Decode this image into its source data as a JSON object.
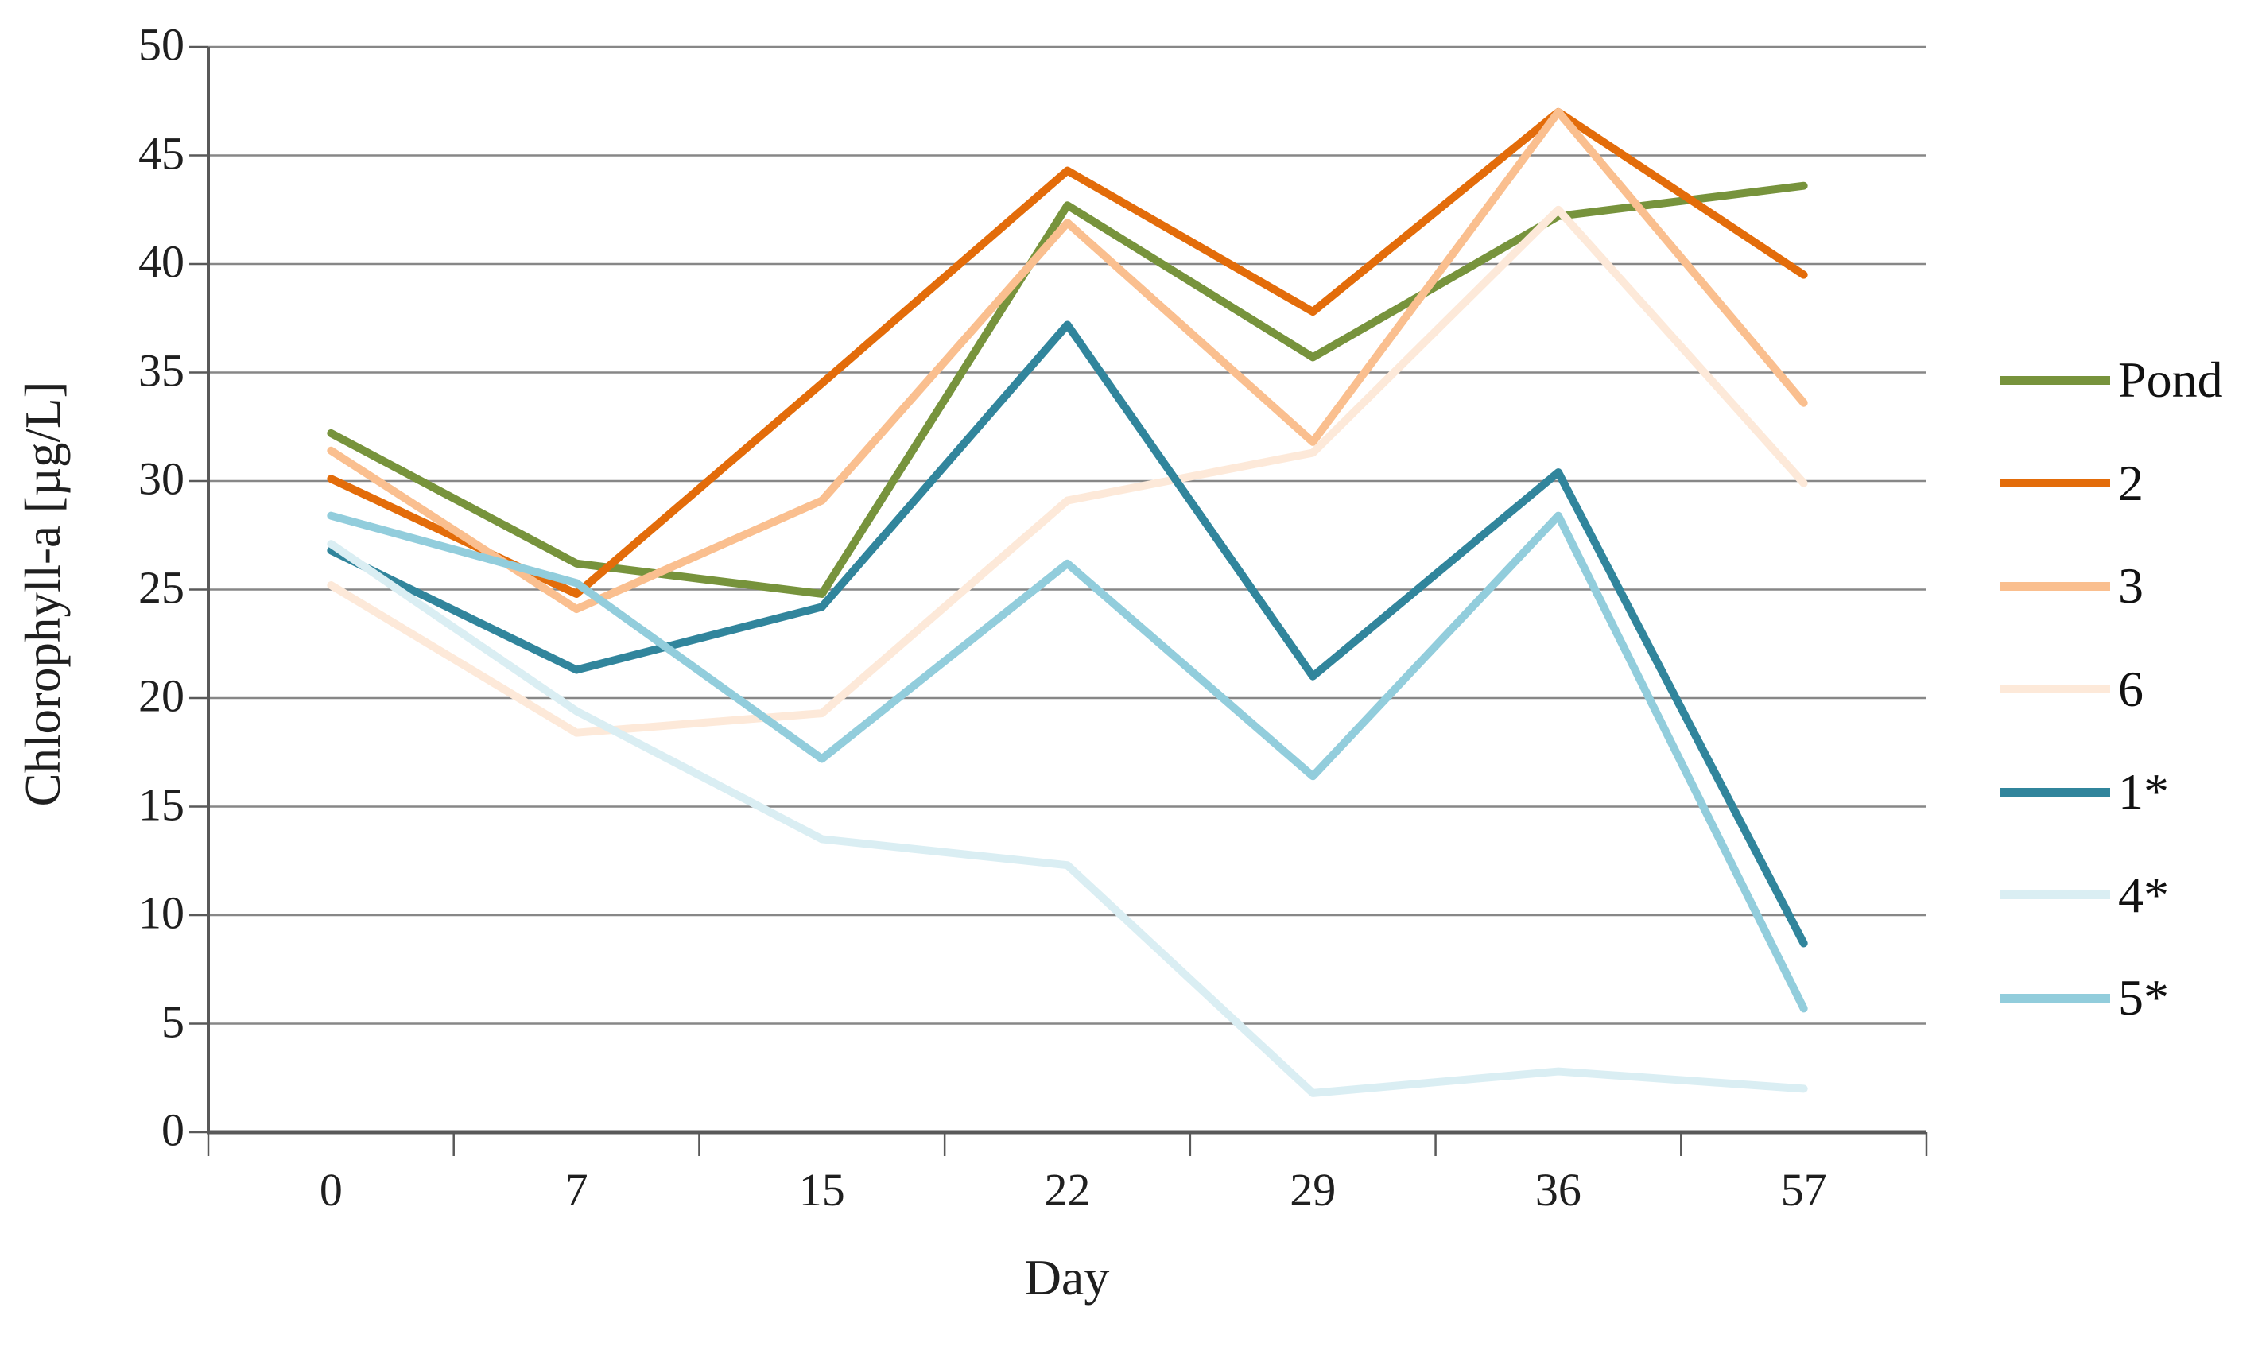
{
  "chart_data": {
    "type": "line",
    "title": "",
    "xlabel": "Day",
    "ylabel": "Chlorophyll-a [µg/L]",
    "categories": [
      "0",
      "7",
      "15",
      "22",
      "29",
      "36",
      "57"
    ],
    "y_ticks": [
      0,
      5,
      10,
      15,
      20,
      25,
      30,
      35,
      40,
      45,
      50
    ],
    "ylim": [
      0,
      50
    ],
    "grid": true,
    "legend_position": "right",
    "series": [
      {
        "name": "Pond",
        "color": "#77933C",
        "values": [
          32.2,
          26.2,
          24.8,
          42.7,
          35.7,
          42.2,
          43.6
        ]
      },
      {
        "name": "2",
        "color": "#E36C0A",
        "values": [
          30.1,
          24.8,
          34.5,
          44.3,
          37.8,
          47.0,
          39.5
        ]
      },
      {
        "name": "3",
        "color": "#FABF8F",
        "values": [
          31.4,
          24.1,
          29.1,
          41.9,
          31.8,
          47.0,
          33.6
        ]
      },
      {
        "name": "6",
        "color": "#FDE9D9",
        "values": [
          25.2,
          18.4,
          19.3,
          29.1,
          31.3,
          42.5,
          29.9
        ]
      },
      {
        "name": "1*",
        "color": "#31859C",
        "values": [
          26.8,
          21.3,
          24.2,
          37.2,
          21.0,
          30.4,
          8.7
        ]
      },
      {
        "name": "4*",
        "color": "#DAEEF3",
        "values": [
          27.1,
          19.4,
          13.5,
          12.3,
          1.8,
          2.8,
          2.0
        ]
      },
      {
        "name": "5*",
        "color": "#92CDDC",
        "values": [
          28.4,
          25.3,
          17.2,
          26.2,
          16.4,
          28.4,
          5.7
        ]
      }
    ],
    "grid_color": "#878787",
    "axis_color": "#595959",
    "text_color": "#1f1f1f"
  }
}
